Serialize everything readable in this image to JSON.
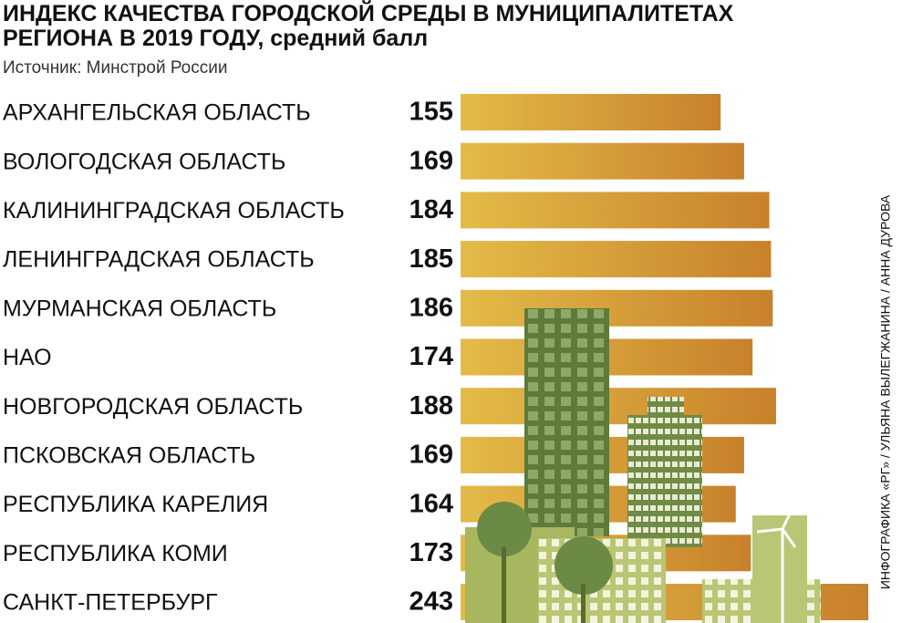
{
  "chart_data": {
    "type": "bar",
    "orientation": "horizontal",
    "title": "ИНДЕКС КАЧЕСТВА ГОРОДСКОЙ СРЕДЫ В МУНИЦИПАЛИТЕТАХ РЕГИОНА В 2019 ГОДУ, средний балл",
    "source": "Источник: Минстрой России",
    "credit": "ИНФОГРАФИКА «РГ» / УЛЬЯНА ВЫЛЕГЖАНИНА / АННА ДУРОВА",
    "categories": [
      "АРХАНГЕЛЬСКАЯ ОБЛАСТЬ",
      "ВОЛОГОДСКАЯ ОБЛАСТЬ",
      "КАЛИНИНГРАДСКАЯ ОБЛАСТЬ",
      "ЛЕНИНГРАДСКАЯ ОБЛАСТЬ",
      "МУРМАНСКАЯ ОБЛАСТЬ",
      "НАО",
      "НОВГОРОДСКАЯ ОБЛАСТЬ",
      "ПСКОВСКАЯ ОБЛАСТЬ",
      "РЕСПУБЛИКА КАРЕЛИЯ",
      "РЕСПУБЛИКА КОМИ",
      "САНКТ-ПЕТЕРБУРГ"
    ],
    "values": [
      155,
      169,
      184,
      185,
      186,
      174,
      188,
      169,
      164,
      173,
      243
    ],
    "colors": [
      "#e3bb48",
      "#c8812b"
    ]
  }
}
